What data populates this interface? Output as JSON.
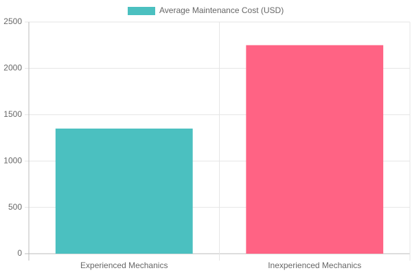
{
  "chart_data": {
    "type": "bar",
    "categories": [
      "Experienced Mechanics",
      "Inexperienced Mechanics"
    ],
    "series": [
      {
        "name": "Average Maintenance Cost (USD)",
        "colors": [
          "#4bc0c0",
          "#ff6384"
        ],
        "values": [
          1350,
          2250
        ]
      }
    ],
    "ylim": [
      0,
      2500
    ],
    "yticks": [
      0,
      500,
      1000,
      1500,
      2000,
      2500
    ],
    "grid": true,
    "legend": "top"
  }
}
